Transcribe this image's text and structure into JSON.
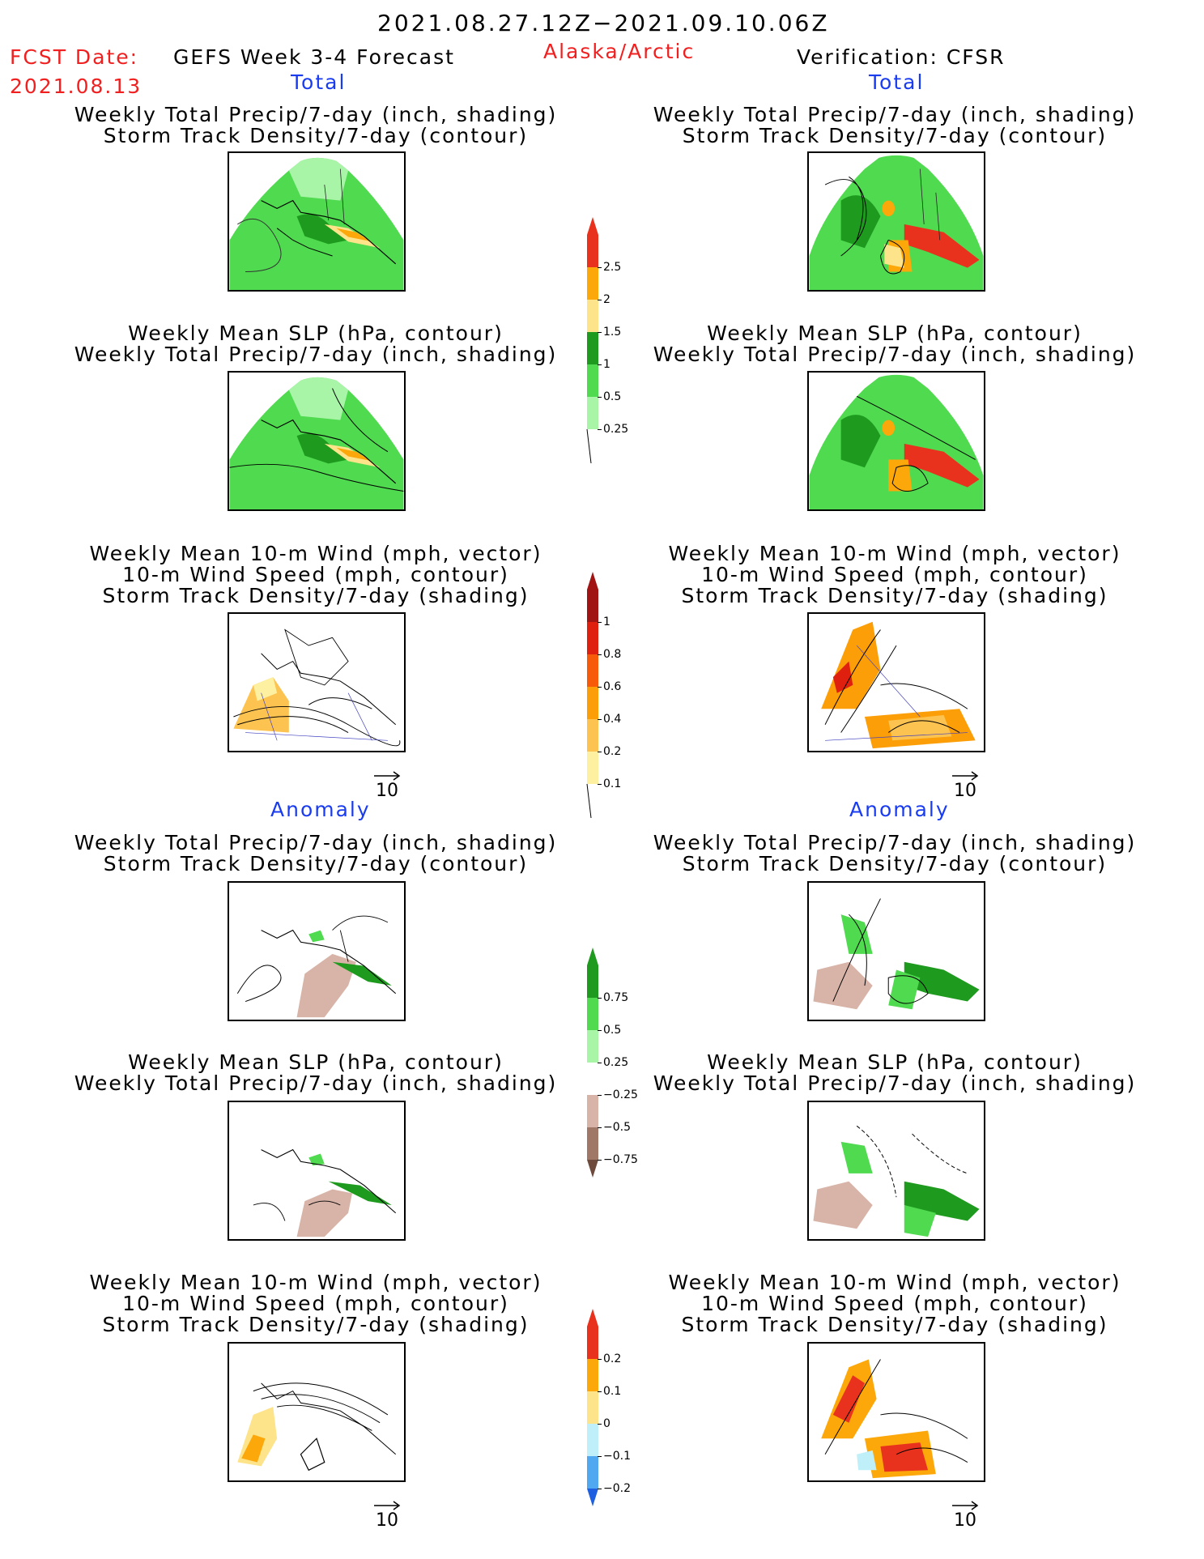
{
  "header": {
    "period": "2021.08.27.12Z−2021.09.10.06Z",
    "fcst_label": "FCST Date:",
    "fcst_date": "2021.08.13",
    "model": "GEFS Week 3-4 Forecast",
    "region": "Alaska/Arctic",
    "verification": "Verification: CFSR"
  },
  "sections": {
    "total": "Total",
    "anomaly": "Anomaly"
  },
  "titles": {
    "precip_std": [
      "Weekly Total Precip/7-day (inch, shading)",
      "Storm Track Density/7-day (contour)"
    ],
    "slp_precip": [
      "Weekly Mean SLP (hPa, contour)",
      "Weekly Total Precip/7-day (inch, shading)"
    ],
    "wind": [
      "Weekly Mean 10-m Wind (mph, vector)",
      "10-m Wind Speed (mph, contour)",
      "Storm Track Density/7-day (shading)"
    ]
  },
  "vector_ref": "10",
  "colorbars": {
    "precip_total": {
      "labels": [
        "2.5",
        "2",
        "1.5",
        "1",
        "0.5",
        "0.25"
      ],
      "colors": [
        "#e8321e",
        "#fca80a",
        "#fde38a",
        "#1e9a1e",
        "#4fda4f",
        "#a8f5a8"
      ]
    },
    "std_total": {
      "labels": [
        "1",
        "0.8",
        "0.6",
        "0.4",
        "0.2",
        "0.1"
      ],
      "colors": [
        "#a01414",
        "#e0200e",
        "#f75a08",
        "#fc9e08",
        "#fdc350",
        "#fdf0a0"
      ]
    },
    "precip_anom": {
      "labels": [
        "0.75",
        "0.5",
        "0.25",
        "−0.25",
        "−0.5",
        "−0.75"
      ],
      "colors": [
        "#1e9a1e",
        "#4fda4f",
        "#a8f5a8",
        "#ffffff",
        "#d8b4a8",
        "#a07868",
        "#6e4a3c"
      ]
    },
    "std_anom": {
      "labels": [
        "0.2",
        "0.1",
        "0",
        "−0.1",
        "−0.2"
      ],
      "colors": [
        "#e8321e",
        "#fca80a",
        "#fde38a",
        "#bfeff8",
        "#4fa8f0",
        "#1e60e0"
      ]
    }
  }
}
